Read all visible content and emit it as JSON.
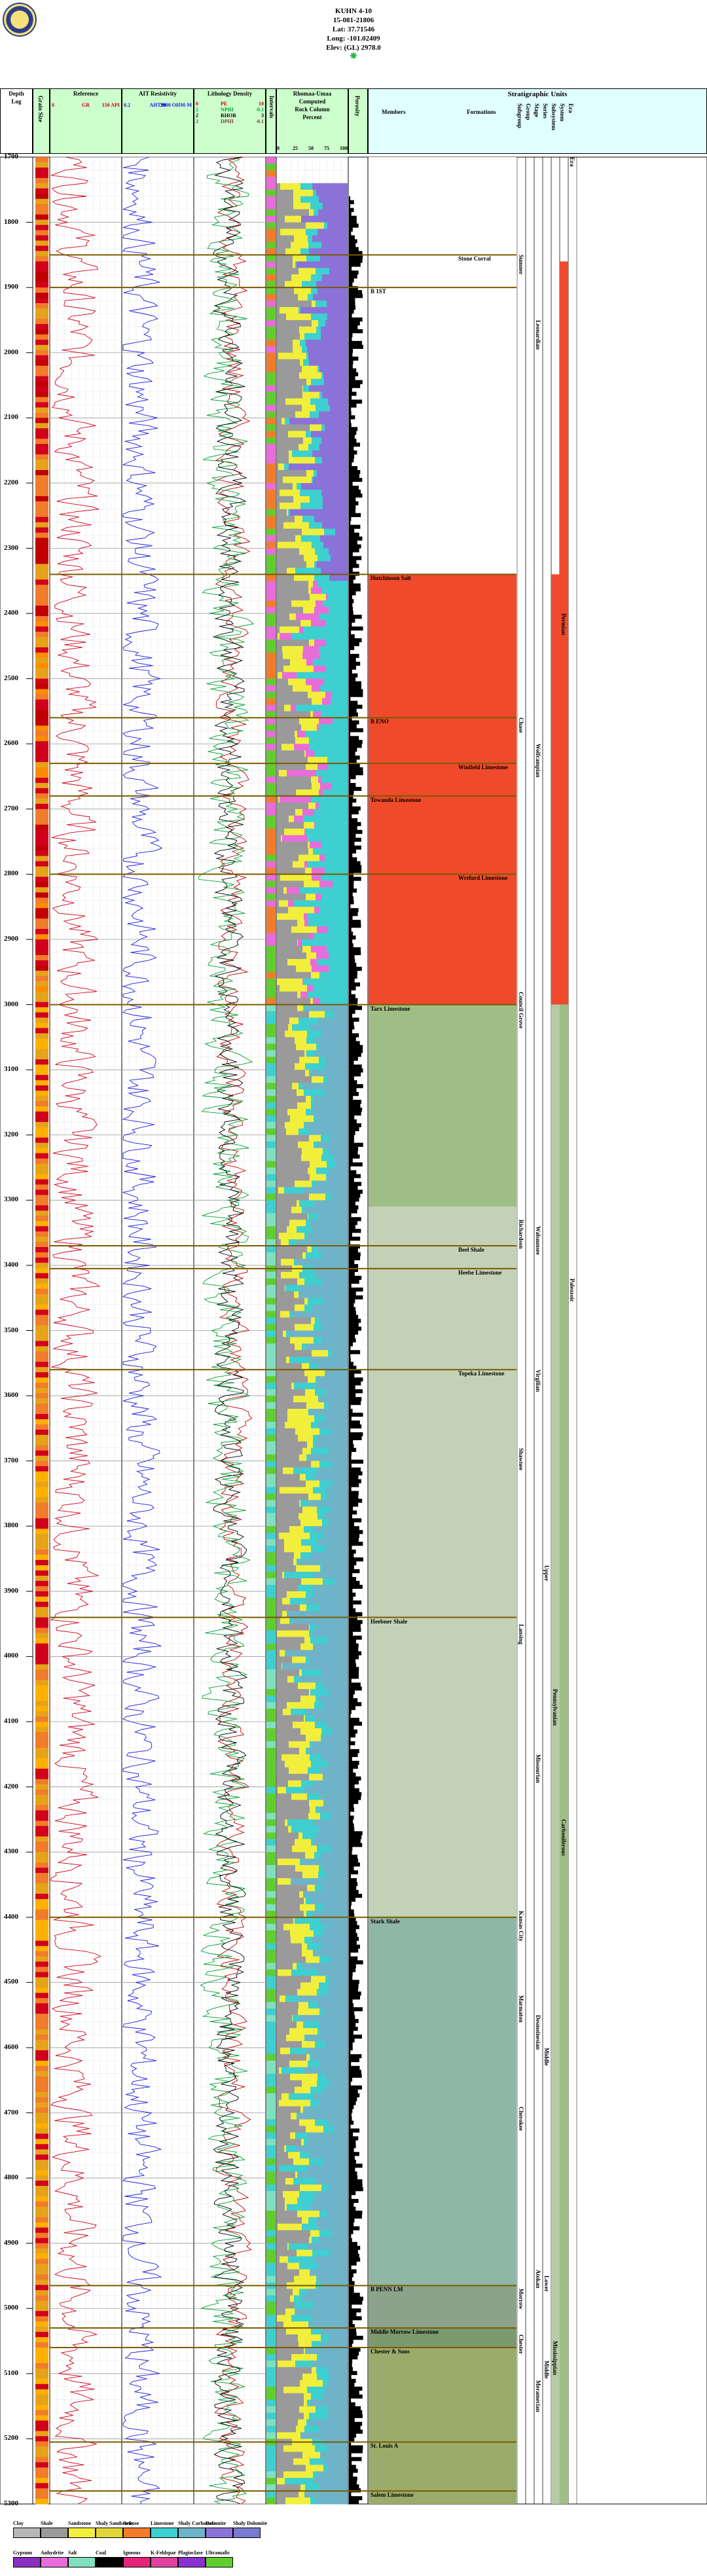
{
  "well": {
    "name": "KUHN 4-10",
    "api": "15-081-21806",
    "lat": "Lat: 37.71546",
    "long": "Long: -101.02409",
    "elev": "Elev: (GL) 2978.0"
  },
  "columns": {
    "depth": [
      "Depth",
      "Log"
    ],
    "grain_size": "Grain Size",
    "gr": {
      "title": "Reference",
      "curve": "GR",
      "min": "0",
      "max": "150 API"
    },
    "resistivity": {
      "title": "AIT Resistivity",
      "curve": "AHT90",
      "min": "0.2",
      "max": "2000 OHM-M"
    },
    "lithology": {
      "title": "Lithology Density",
      "rows": [
        [
          "0",
          "PE",
          "10"
        ],
        [
          "2",
          "NPHI",
          "-0.1"
        ],
        [
          "2",
          "RHOB",
          "3"
        ],
        [
          "2",
          "DPHI",
          "-0.1"
        ]
      ]
    },
    "intervals": "Intervals",
    "rock": {
      "title": "Rhomaa-Umaa",
      "sub1": "Computed",
      "sub2": "Rock Column",
      "sub3": "Percent",
      "ticks": [
        "0",
        "25",
        "50",
        "75",
        "100"
      ]
    },
    "porosity": "Porosity",
    "strat": "Stratigraphic Units",
    "members": "Members",
    "formations": "Formations",
    "groups": [
      "Subgroup",
      "Group",
      "Stage",
      "Series",
      "Subsystem",
      "System",
      "Era"
    ]
  },
  "depth_ticks": [
    "1700",
    "1800",
    "1900",
    "2000",
    "2100",
    "2200",
    "2300",
    "2400",
    "2500",
    "2600",
    "2700",
    "2800",
    "2900",
    "3000",
    "3100",
    "3200",
    "3300",
    "3400",
    "3500",
    "3600",
    "3700",
    "3800",
    "3900",
    "4000",
    "4100",
    "4200",
    "4300",
    "4400",
    "4500",
    "4600",
    "4700",
    "4800",
    "4900",
    "5000",
    "5100",
    "5200",
    "5300"
  ],
  "formations_list": [
    {
      "name": "Stone Corral",
      "depth": 1850,
      "col": "formations"
    },
    {
      "name": "B 1ST",
      "depth": 1900,
      "col": "members"
    },
    {
      "name": "Hutchinson Salt",
      "depth": 2340,
      "col": "members"
    },
    {
      "name": "B ENO",
      "depth": 2560,
      "col": "members"
    },
    {
      "name": "Winfield Limestone",
      "depth": 2630,
      "col": "formations"
    },
    {
      "name": "Towanda Limestone",
      "depth": 2680,
      "col": "members"
    },
    {
      "name": "Wreford Limestone",
      "depth": 2800,
      "col": "formations"
    },
    {
      "name": "Tarx Limestone",
      "depth": 3000,
      "col": "members"
    },
    {
      "name": "Beel Shale",
      "depth": 3370,
      "col": "formations"
    },
    {
      "name": "Heebe Limestone",
      "depth": 3405,
      "col": "formations"
    },
    {
      "name": "Topeka Limestone",
      "depth": 3560,
      "col": "formations"
    },
    {
      "name": "Heebner Shale",
      "depth": 3940,
      "col": "members"
    },
    {
      "name": "Stark Shale",
      "depth": 4400,
      "col": "members"
    },
    {
      "name": "B PENN LM",
      "depth": 4965,
      "col": "members"
    },
    {
      "name": "Middle Morrow Limestone",
      "depth": 5030,
      "col": "members"
    },
    {
      "name": "Chester & Sons",
      "depth": 5060,
      "col": "members"
    },
    {
      "name": "St. Louis A",
      "depth": 5205,
      "col": "members"
    },
    {
      "name": "Salem Limestone",
      "depth": 5280,
      "col": "members"
    }
  ],
  "strat_bands": [
    {
      "from": 1700,
      "to": 1850,
      "color": "#ffffff"
    },
    {
      "from": 1850,
      "to": 2340,
      "color": "#ffffff"
    },
    {
      "from": 2340,
      "to": 3000,
      "color": "#ef4a2c"
    },
    {
      "from": 3000,
      "to": 3310,
      "color": "#9fbe86"
    },
    {
      "from": 3310,
      "to": 4400,
      "color": "#c3d2b6"
    },
    {
      "from": 4400,
      "to": 4965,
      "color": "#8fb7a8"
    },
    {
      "from": 4965,
      "to": 5030,
      "color": "#8aa38a"
    },
    {
      "from": 5030,
      "to": 5060,
      "color": "#7b9a6e"
    },
    {
      "from": 5060,
      "to": 5300,
      "color": "#9aac6b"
    }
  ],
  "vertical_units": [
    {
      "text": "Sumner",
      "from": 1850,
      "to": 2340,
      "col": 0
    },
    {
      "text": "Chase",
      "from": 2560,
      "to": 2800,
      "col": 0
    },
    {
      "text": "Council Grove",
      "from": 2980,
      "to": 3140,
      "col": 0
    },
    {
      "text": "Richardson",
      "from": 3330,
      "to": 3450,
      "col": 0
    },
    {
      "text": "Shawnee",
      "from": 3680,
      "to": 3920,
      "col": 0
    },
    {
      "text": "Lansing",
      "from": 3950,
      "to": 4110,
      "col": 0
    },
    {
      "text": "Kansas City",
      "from": 4390,
      "to": 4470,
      "col": 0
    },
    {
      "text": "Marmaton",
      "from": 4520,
      "to": 4700,
      "col": 0
    },
    {
      "text": "Cherokee",
      "from": 4690,
      "to": 4860,
      "col": 0
    },
    {
      "text": "Morrow",
      "from": 4970,
      "to": 5020,
      "col": 0
    },
    {
      "text": "Chester",
      "from": 5040,
      "to": 5100,
      "col": 0
    },
    {
      "text": "Leonardian",
      "from": 1950,
      "to": 2200,
      "col": 2
    },
    {
      "text": "Wolfcampian",
      "from": 2600,
      "to": 2900,
      "col": 2
    },
    {
      "text": "Wabaunsee",
      "from": 3340,
      "to": 3480,
      "col": 2
    },
    {
      "text": "Virgilian",
      "from": 3560,
      "to": 3680,
      "col": 2
    },
    {
      "text": "Missourian",
      "from": 4150,
      "to": 4300,
      "col": 2
    },
    {
      "text": "Desmoinesian",
      "from": 4550,
      "to": 4650,
      "col": 2
    },
    {
      "text": "Atokan",
      "from": 4940,
      "to": 4990,
      "col": 2
    },
    {
      "text": "Meramecian",
      "from": 5110,
      "to": 5250,
      "col": 2
    },
    {
      "text": "Upper",
      "from": 3860,
      "to": 3960,
      "col": 3
    },
    {
      "text": "Middle",
      "from": 4600,
      "to": 4680,
      "col": 3
    },
    {
      "text": "Lower",
      "from": 4950,
      "to": 5010,
      "col": 3
    },
    {
      "text": "Middle",
      "from": 5080,
      "to": 5130,
      "col": 3
    },
    {
      "text": "Pennsylvanian",
      "from": 4050,
      "to": 4250,
      "col": 4
    },
    {
      "text": "Mississippian",
      "from": 5050,
      "to": 5150,
      "col": 4
    },
    {
      "text": "Permian",
      "from": 2400,
      "to": 2500,
      "col": 5
    },
    {
      "text": "Carboniferous",
      "from": 4250,
      "to": 4400,
      "col": 5
    },
    {
      "text": "Paleozoic",
      "from": 3420,
      "to": 3550,
      "col": 6
    },
    {
      "text": "Era",
      "from": 1700,
      "to": 1730,
      "col": 6
    }
  ],
  "legend": [
    {
      "label": "Clay",
      "color": "#b7b7b7"
    },
    {
      "label": "Shale",
      "color": "#9a9a9a"
    },
    {
      "label": "Sandstone",
      "color": "#f1ef3c"
    },
    {
      "label": "Shaly Sandstone",
      "color": "#e0d63a"
    },
    {
      "label": "Arkose",
      "color": "#f27c2a"
    },
    {
      "label": "Limestone",
      "color": "#3ecfd0"
    },
    {
      "label": "Shaly Carbonate",
      "color": "#6fb3c9"
    },
    {
      "label": "Dolomite",
      "color": "#8a72d9"
    },
    {
      "label": "Shaly Dolomite",
      "color": "#7a7ad0"
    },
    {
      "label": "Gypsum",
      "color": "#8a2fc0"
    },
    {
      "label": "Anhydrite",
      "color": "#e86cd9"
    },
    {
      "label": "Salt",
      "color": "#7fe0c0"
    },
    {
      "label": "Coal",
      "color": "#000000"
    },
    {
      "label": "Igneous",
      "color": "#e6237a"
    },
    {
      "label": "K-Feldspar",
      "color": "#e0409f"
    },
    {
      "label": "Plagioclase",
      "color": "#8a2fd0"
    },
    {
      "label": "Ultramafic",
      "color": "#5fce2c"
    }
  ],
  "colors": {
    "gr": "#d0001b",
    "res": "#1a1ae0",
    "pe": "#c00000",
    "nphi": "#00a030",
    "rhob": "#000000",
    "dphi": "#7a3a3a",
    "header_bg": "#ccffcc",
    "strat_header": "#e0ffff",
    "fm_line": "#7a5a00"
  }
}
